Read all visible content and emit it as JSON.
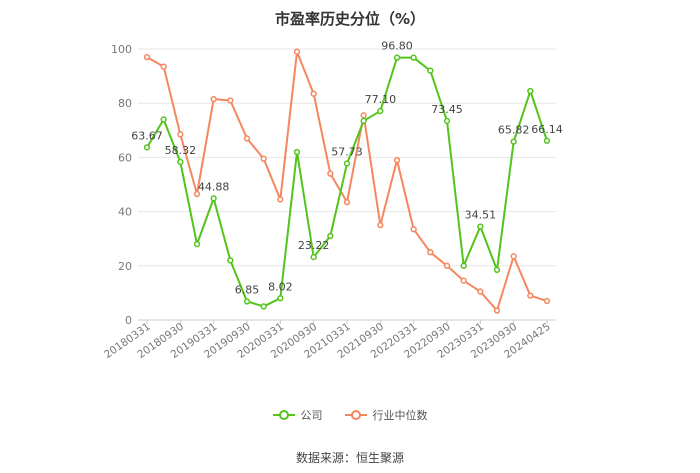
{
  "chart_data": {
    "type": "line",
    "title": "市盈率历史分位（%）",
    "source": "数据来源：恒生聚源",
    "ylim": [
      0,
      100
    ],
    "yticks": [
      "0",
      "20",
      "40",
      "60",
      "80",
      "100"
    ],
    "xtick_labels": [
      "20180331",
      "20180930",
      "20190331",
      "20190930",
      "20200331",
      "20200930",
      "20210331",
      "20210930",
      "20220331",
      "20220930",
      "20230331",
      "20230930",
      "20240425"
    ],
    "grid": true,
    "legend_position": "bottom",
    "x": [
      "20180331",
      "20180630",
      "20180930",
      "20181231",
      "20190331",
      "20190630",
      "20190930",
      "20191231",
      "20200331",
      "20200630",
      "20200930",
      "20201231",
      "20210331",
      "20210630",
      "20210930",
      "20211231",
      "20220331",
      "20220630",
      "20220930",
      "20221231",
      "20230331",
      "20230630",
      "20230930",
      "20231231",
      "20240425"
    ],
    "series": [
      {
        "name": "公司",
        "color": "#52c41a",
        "values": [
          63.67,
          74,
          58.32,
          28,
          44.88,
          22,
          6.85,
          5,
          8.02,
          62,
          23.22,
          31,
          57.73,
          73.5,
          77.1,
          96.8,
          96.8,
          92,
          73.45,
          20,
          34.51,
          18.5,
          65.82,
          84.5,
          66.14
        ],
        "labels": [
          "63.67",
          "",
          "58.32",
          "",
          "44.88",
          "",
          "6.85",
          "",
          "8.02",
          "",
          "23.22",
          "",
          "57.73",
          "",
          "77.10",
          "96.80",
          "",
          "",
          "73.45",
          "",
          "34.51",
          "",
          "65.82",
          "",
          "66.14"
        ]
      },
      {
        "name": "行业中位数",
        "color": "#f5875f",
        "values": [
          97,
          93.5,
          68.5,
          46.5,
          81.5,
          81,
          67,
          59.5,
          44.5,
          99,
          83.5,
          54,
          43.5,
          75.5,
          35,
          59,
          33.5,
          25,
          20,
          14.5,
          10.5,
          3.5,
          23.5,
          9,
          7
        ],
        "labels": []
      }
    ]
  }
}
